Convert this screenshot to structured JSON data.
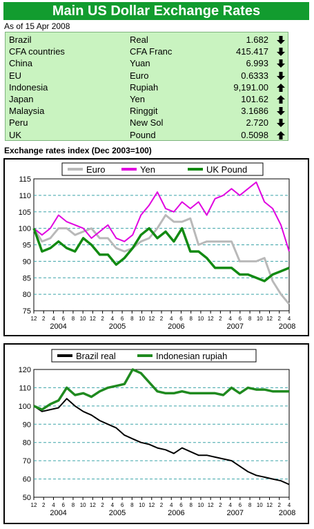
{
  "title": "Main US Dollar Exchange Rates",
  "as_of": "As of 15 Apr 2008",
  "rates": [
    {
      "country": "Brazil",
      "currency": "Real",
      "value": "1.682",
      "dir": "down"
    },
    {
      "country": "CFA countries",
      "currency": "CFA Franc",
      "value": "415.417",
      "dir": "down"
    },
    {
      "country": "China",
      "currency": "Yuan",
      "value": "6.993",
      "dir": "down"
    },
    {
      "country": "EU",
      "currency": "Euro",
      "value": "0.6333",
      "dir": "down"
    },
    {
      "country": "Indonesia",
      "currency": "Rupiah",
      "value": "9,191.00",
      "dir": "up"
    },
    {
      "country": "Japan",
      "currency": "Yen",
      "value": "101.62",
      "dir": "up"
    },
    {
      "country": "Malaysia",
      "currency": "Ringgit",
      "value": "3.1686",
      "dir": "down"
    },
    {
      "country": "Peru",
      "currency": "New Sol",
      "value": "2.720",
      "dir": "down"
    },
    {
      "country": "UK",
      "currency": "Pound",
      "value": "0.5098",
      "dir": "up"
    }
  ],
  "colors": {
    "banner": "#129c2f",
    "table_bg": "#c9f3c0",
    "euro": "#b9b9b9",
    "yen": "#e000e0",
    "pound": "#128a12",
    "brazil": "#000000",
    "rupiah": "#1f8a1f",
    "grid": "#3aa3a8"
  },
  "index_subtitle": "Exchange rates index (Dec 2003=100)",
  "chart_data": [
    {
      "type": "line",
      "x_tick_labels": [
        "12",
        "2",
        "4",
        "6",
        "8",
        "10",
        "12",
        "2",
        "4",
        "6",
        "8",
        "10",
        "12",
        "2",
        "4",
        "6",
        "8",
        "10",
        "12",
        "2",
        "4",
        "6",
        "8",
        "10",
        "12",
        "2",
        "4"
      ],
      "year_labels": [
        "2004",
        "2005",
        "2006",
        "2007",
        "2008"
      ],
      "ylim": [
        75,
        115
      ],
      "yticks": [
        75,
        80,
        85,
        90,
        95,
        100,
        105,
        110,
        115
      ],
      "grid": "horizontal dashed",
      "legend": "top",
      "series": [
        {
          "name": "Euro",
          "color": "#b9b9b9",
          "values": [
            100,
            96,
            97,
            100,
            100,
            98,
            99,
            100,
            97,
            97,
            94,
            93,
            94,
            96,
            97,
            100,
            104,
            102,
            102,
            103,
            95,
            96,
            96,
            96,
            96,
            90,
            90,
            90,
            91,
            84,
            80,
            77
          ]
        },
        {
          "name": "Yen",
          "color": "#e000e0",
          "values": [
            100,
            98,
            100,
            104,
            102,
            101,
            100,
            97,
            99,
            101,
            97,
            96,
            98,
            104,
            107,
            111,
            106,
            105,
            108,
            106,
            108,
            104,
            109,
            110,
            112,
            110,
            112,
            114,
            108,
            106,
            101,
            93
          ]
        },
        {
          "name": "UK Pound",
          "color": "#128a12",
          "values": [
            100,
            93,
            94,
            96,
            94,
            93,
            97,
            95,
            92,
            92,
            89,
            91,
            94,
            98,
            100,
            97,
            99,
            96,
            100,
            93,
            93,
            91,
            88,
            88,
            88,
            86,
            86,
            85,
            84,
            86,
            87,
            88
          ]
        }
      ]
    },
    {
      "type": "line",
      "x_tick_labels": [
        "12",
        "2",
        "4",
        "6",
        "8",
        "10",
        "12",
        "2",
        "4",
        "6",
        "8",
        "10",
        "12",
        "2",
        "4",
        "6",
        "8",
        "10",
        "12",
        "2",
        "4",
        "6",
        "8",
        "10",
        "12",
        "2",
        "4"
      ],
      "year_labels": [
        "2004",
        "2005",
        "2006",
        "2007",
        "2008"
      ],
      "ylim": [
        50,
        120
      ],
      "yticks": [
        50,
        60,
        70,
        80,
        90,
        100,
        110,
        120
      ],
      "grid": "horizontal dashed",
      "legend": "top",
      "series": [
        {
          "name": "Brazil real",
          "color": "#000000",
          "values": [
            100,
            97,
            98,
            99,
            104,
            100,
            97,
            95,
            92,
            90,
            88,
            84,
            82,
            80,
            79,
            77,
            76,
            74,
            77,
            75,
            73,
            73,
            72,
            71,
            70,
            67,
            64,
            62,
            61,
            60,
            59,
            57
          ]
        },
        {
          "name": "Indonesian rupiah",
          "color": "#1f8a1f",
          "values": [
            100,
            98,
            101,
            103,
            110,
            106,
            107,
            105,
            108,
            110,
            111,
            112,
            120,
            118,
            113,
            108,
            107,
            107,
            108,
            107,
            107,
            107,
            107,
            106,
            110,
            107,
            110,
            109,
            109,
            108,
            108,
            108
          ]
        }
      ]
    }
  ]
}
